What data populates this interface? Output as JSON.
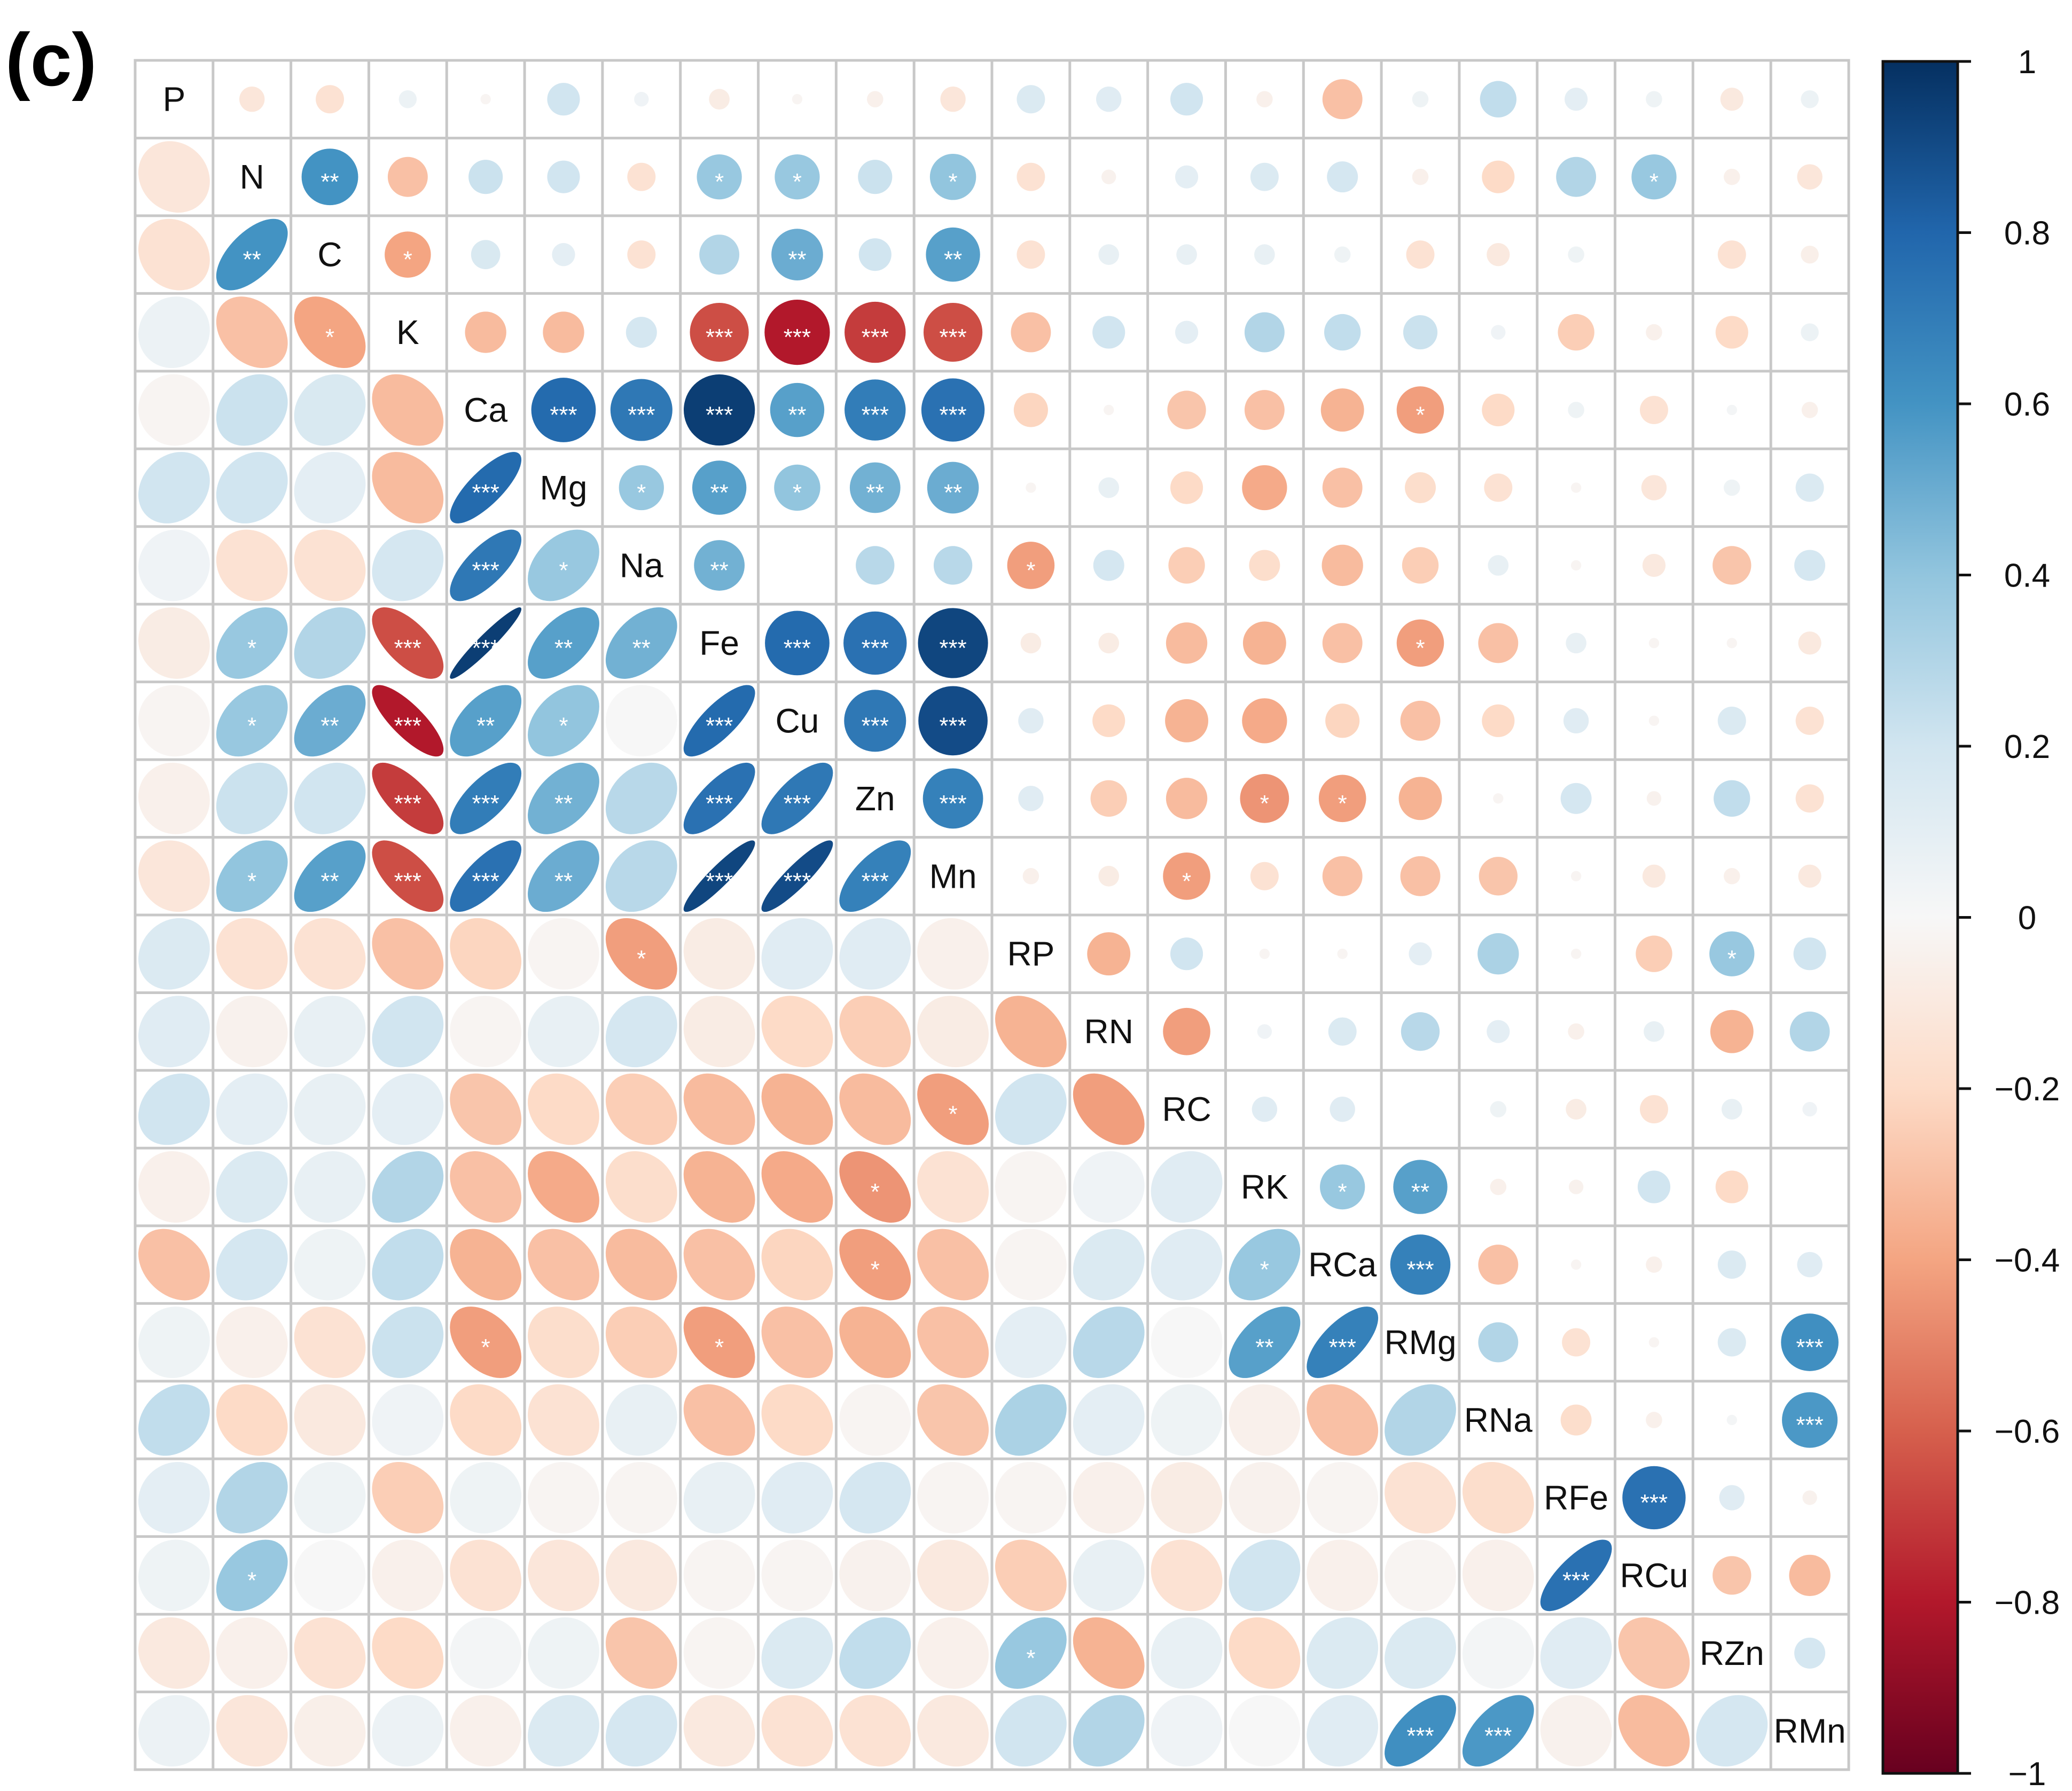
{
  "panel_label": "(c)",
  "colorbar": {
    "ticks": [
      "1",
      "0.8",
      "0.6",
      "0.4",
      "0.2",
      "0",
      "−0.2",
      "−0.4",
      "−0.6",
      "−0.8",
      "−1"
    ],
    "low_color": "#67001f",
    "mid_color": "#ffffff",
    "high_color": "#053061"
  },
  "chart_data": {
    "type": "heatmap",
    "subtype": "correlation matrix (lower: ellipses, upper: circles, * p<0.05, ** p<0.01, *** p<0.001)",
    "variables": [
      "P",
      "N",
      "C",
      "K",
      "Ca",
      "Mg",
      "Na",
      "Fe",
      "Cu",
      "Zn",
      "Mn",
      "RP",
      "RN",
      "RC",
      "RK",
      "RCa",
      "RMg",
      "RNa",
      "RFe",
      "RCu",
      "RZn",
      "RMn"
    ],
    "value_range": [
      -1,
      1
    ],
    "pairs": [
      [
        "N",
        "P",
        -0.12,
        ""
      ],
      [
        "C",
        "P",
        -0.15,
        ""
      ],
      [
        "C",
        "N",
        0.6,
        "**"
      ],
      [
        "K",
        "P",
        0.06,
        ""
      ],
      [
        "K",
        "N",
        -0.3,
        ""
      ],
      [
        "K",
        "C",
        -0.4,
        "*"
      ],
      [
        "Ca",
        "P",
        -0.02,
        ""
      ],
      [
        "Ca",
        "N",
        0.22,
        ""
      ],
      [
        "Ca",
        "C",
        0.16,
        ""
      ],
      [
        "Ca",
        "K",
        -0.32,
        ""
      ],
      [
        "Mg",
        "P",
        0.2,
        ""
      ],
      [
        "Mg",
        "N",
        0.2,
        ""
      ],
      [
        "Mg",
        "C",
        0.1,
        ""
      ],
      [
        "Mg",
        "K",
        -0.32,
        ""
      ],
      [
        "Mg",
        "Ca",
        0.78,
        "***"
      ],
      [
        "Na",
        "P",
        0.04,
        ""
      ],
      [
        "Na",
        "N",
        -0.15,
        ""
      ],
      [
        "Na",
        "C",
        -0.15,
        ""
      ],
      [
        "Na",
        "K",
        0.18,
        ""
      ],
      [
        "Na",
        "Ca",
        0.72,
        "***"
      ],
      [
        "Na",
        "Mg",
        0.38,
        "*"
      ],
      [
        "Fe",
        "P",
        -0.08,
        ""
      ],
      [
        "Fe",
        "N",
        0.38,
        "*"
      ],
      [
        "Fe",
        "C",
        0.3,
        ""
      ],
      [
        "Fe",
        "K",
        -0.65,
        "***"
      ],
      [
        "Fe",
        "Ca",
        0.95,
        "***"
      ],
      [
        "Fe",
        "Mg",
        0.55,
        "**"
      ],
      [
        "Fe",
        "Na",
        0.48,
        "**"
      ],
      [
        "Cu",
        "P",
        -0.02,
        ""
      ],
      [
        "Cu",
        "N",
        0.38,
        "*"
      ],
      [
        "Cu",
        "C",
        0.5,
        "**"
      ],
      [
        "Cu",
        "K",
        -0.8,
        "***"
      ],
      [
        "Cu",
        "Ca",
        0.55,
        "**"
      ],
      [
        "Cu",
        "Mg",
        0.4,
        "*"
      ],
      [
        "Cu",
        "Na",
        0.0,
        ""
      ],
      [
        "Cu",
        "Fe",
        0.78,
        "***"
      ],
      [
        "Zn",
        "P",
        -0.05,
        ""
      ],
      [
        "Zn",
        "N",
        0.22,
        ""
      ],
      [
        "Zn",
        "C",
        0.2,
        ""
      ],
      [
        "Zn",
        "K",
        -0.7,
        "***"
      ],
      [
        "Zn",
        "Ca",
        0.7,
        "***"
      ],
      [
        "Zn",
        "Mg",
        0.48,
        "**"
      ],
      [
        "Zn",
        "Na",
        0.28,
        ""
      ],
      [
        "Zn",
        "Fe",
        0.75,
        "***"
      ],
      [
        "Zn",
        "Cu",
        0.72,
        "***"
      ],
      [
        "Mn",
        "P",
        -0.12,
        ""
      ],
      [
        "Mn",
        "N",
        0.4,
        "*"
      ],
      [
        "Mn",
        "C",
        0.55,
        "**"
      ],
      [
        "Mn",
        "K",
        -0.65,
        "***"
      ],
      [
        "Mn",
        "Ca",
        0.75,
        "***"
      ],
      [
        "Mn",
        "Mg",
        0.5,
        "**"
      ],
      [
        "Mn",
        "Na",
        0.28,
        ""
      ],
      [
        "Mn",
        "Fe",
        0.92,
        "***"
      ],
      [
        "Mn",
        "Cu",
        0.9,
        "***"
      ],
      [
        "Mn",
        "Zn",
        0.68,
        "***"
      ],
      [
        "RP",
        "P",
        0.15,
        ""
      ],
      [
        "RP",
        "N",
        -0.15,
        ""
      ],
      [
        "RP",
        "C",
        -0.15,
        ""
      ],
      [
        "RP",
        "K",
        -0.3,
        ""
      ],
      [
        "RP",
        "Ca",
        -0.22,
        ""
      ],
      [
        "RP",
        "Mg",
        -0.02,
        ""
      ],
      [
        "RP",
        "Na",
        -0.42,
        "*"
      ],
      [
        "RP",
        "Fe",
        -0.08,
        ""
      ],
      [
        "RP",
        "Cu",
        0.12,
        ""
      ],
      [
        "RP",
        "Zn",
        0.12,
        ""
      ],
      [
        "RP",
        "Mn",
        -0.05,
        ""
      ],
      [
        "RN",
        "P",
        0.12,
        ""
      ],
      [
        "RN",
        "N",
        -0.04,
        ""
      ],
      [
        "RN",
        "C",
        0.08,
        ""
      ],
      [
        "RN",
        "K",
        0.2,
        ""
      ],
      [
        "RN",
        "Ca",
        -0.02,
        ""
      ],
      [
        "RN",
        "Mg",
        0.08,
        ""
      ],
      [
        "RN",
        "Na",
        0.18,
        ""
      ],
      [
        "RN",
        "Fe",
        -0.08,
        ""
      ],
      [
        "RN",
        "Cu",
        -0.2,
        ""
      ],
      [
        "RN",
        "Zn",
        -0.25,
        ""
      ],
      [
        "RN",
        "Mn",
        -0.08,
        ""
      ],
      [
        "RN",
        "RP",
        -0.35,
        ""
      ],
      [
        "RC",
        "P",
        0.2,
        ""
      ],
      [
        "RC",
        "N",
        0.1,
        ""
      ],
      [
        "RC",
        "C",
        0.08,
        ""
      ],
      [
        "RC",
        "K",
        0.1,
        ""
      ],
      [
        "RC",
        "Ca",
        -0.28,
        ""
      ],
      [
        "RC",
        "Mg",
        -0.2,
        ""
      ],
      [
        "RC",
        "Na",
        -0.25,
        ""
      ],
      [
        "RC",
        "Fe",
        -0.32,
        ""
      ],
      [
        "RC",
        "Cu",
        -0.35,
        ""
      ],
      [
        "RC",
        "Zn",
        -0.32,
        ""
      ],
      [
        "RC",
        "Mn",
        -0.42,
        "*"
      ],
      [
        "RC",
        "RP",
        0.2,
        ""
      ],
      [
        "RC",
        "RN",
        -0.42,
        ""
      ],
      [
        "RK",
        "P",
        -0.05,
        ""
      ],
      [
        "RK",
        "N",
        0.15,
        ""
      ],
      [
        "RK",
        "C",
        0.08,
        ""
      ],
      [
        "RK",
        "K",
        0.3,
        ""
      ],
      [
        "RK",
        "Ca",
        -0.3,
        ""
      ],
      [
        "RK",
        "Mg",
        -0.38,
        ""
      ],
      [
        "RK",
        "Na",
        -0.18,
        ""
      ],
      [
        "RK",
        "Fe",
        -0.35,
        ""
      ],
      [
        "RK",
        "Cu",
        -0.38,
        ""
      ],
      [
        "RK",
        "Zn",
        -0.45,
        "*"
      ],
      [
        "RK",
        "Mn",
        -0.15,
        ""
      ],
      [
        "RK",
        "RP",
        -0.02,
        ""
      ],
      [
        "RK",
        "RN",
        0.04,
        ""
      ],
      [
        "RK",
        "RC",
        0.12,
        ""
      ],
      [
        "RCa",
        "P",
        -0.3,
        ""
      ],
      [
        "RCa",
        "N",
        0.18,
        ""
      ],
      [
        "RCa",
        "C",
        0.05,
        ""
      ],
      [
        "RCa",
        "K",
        0.25,
        ""
      ],
      [
        "RCa",
        "Ca",
        -0.35,
        ""
      ],
      [
        "RCa",
        "Mg",
        -0.3,
        ""
      ],
      [
        "RCa",
        "Na",
        -0.32,
        ""
      ],
      [
        "RCa",
        "Fe",
        -0.3,
        ""
      ],
      [
        "RCa",
        "Cu",
        -0.22,
        ""
      ],
      [
        "RCa",
        "Zn",
        -0.42,
        "*"
      ],
      [
        "RCa",
        "Mn",
        -0.3,
        ""
      ],
      [
        "RCa",
        "RP",
        -0.02,
        ""
      ],
      [
        "RCa",
        "RN",
        0.15,
        ""
      ],
      [
        "RCa",
        "RC",
        0.12,
        ""
      ],
      [
        "RCa",
        "RK",
        0.38,
        "*"
      ],
      [
        "RMg",
        "P",
        0.05,
        ""
      ],
      [
        "RMg",
        "N",
        -0.05,
        ""
      ],
      [
        "RMg",
        "C",
        -0.15,
        ""
      ],
      [
        "RMg",
        "K",
        0.22,
        ""
      ],
      [
        "RMg",
        "Ca",
        -0.42,
        "*"
      ],
      [
        "RMg",
        "Mg",
        -0.18,
        ""
      ],
      [
        "RMg",
        "Na",
        -0.25,
        ""
      ],
      [
        "RMg",
        "Fe",
        -0.42,
        "*"
      ],
      [
        "RMg",
        "Cu",
        -0.3,
        ""
      ],
      [
        "RMg",
        "Zn",
        -0.35,
        ""
      ],
      [
        "RMg",
        "Mn",
        -0.3,
        ""
      ],
      [
        "RMg",
        "RP",
        0.1,
        ""
      ],
      [
        "RMg",
        "RN",
        0.28,
        ""
      ],
      [
        "RMg",
        "RC",
        0.0,
        ""
      ],
      [
        "RMg",
        "RK",
        0.55,
        "**"
      ],
      [
        "RMg",
        "RCa",
        0.68,
        "***"
      ],
      [
        "RNa",
        "P",
        0.25,
        ""
      ],
      [
        "RNa",
        "N",
        -0.2,
        ""
      ],
      [
        "RNa",
        "C",
        -0.1,
        ""
      ],
      [
        "RNa",
        "K",
        0.04,
        ""
      ],
      [
        "RNa",
        "Ca",
        -0.2,
        ""
      ],
      [
        "RNa",
        "Mg",
        -0.15,
        ""
      ],
      [
        "RNa",
        "Na",
        0.08,
        ""
      ],
      [
        "RNa",
        "Fe",
        -0.3,
        ""
      ],
      [
        "RNa",
        "Cu",
        -0.2,
        ""
      ],
      [
        "RNa",
        "Zn",
        -0.02,
        ""
      ],
      [
        "RNa",
        "Mn",
        -0.28,
        ""
      ],
      [
        "RNa",
        "RP",
        0.32,
        ""
      ],
      [
        "RNa",
        "RN",
        0.1,
        ""
      ],
      [
        "RNa",
        "RC",
        0.05,
        ""
      ],
      [
        "RNa",
        "RK",
        -0.05,
        ""
      ],
      [
        "RNa",
        "RCa",
        -0.3,
        ""
      ],
      [
        "RNa",
        "RMg",
        0.3,
        ""
      ],
      [
        "RFe",
        "P",
        0.1,
        ""
      ],
      [
        "RFe",
        "N",
        0.3,
        ""
      ],
      [
        "RFe",
        "C",
        0.05,
        ""
      ],
      [
        "RFe",
        "K",
        -0.25,
        ""
      ],
      [
        "RFe",
        "Ca",
        0.05,
        ""
      ],
      [
        "RFe",
        "Mg",
        -0.02,
        ""
      ],
      [
        "RFe",
        "Na",
        -0.02,
        ""
      ],
      [
        "RFe",
        "Fe",
        0.08,
        ""
      ],
      [
        "RFe",
        "Cu",
        0.12,
        ""
      ],
      [
        "RFe",
        "Zn",
        0.18,
        ""
      ],
      [
        "RFe",
        "Mn",
        -0.02,
        ""
      ],
      [
        "RFe",
        "RP",
        -0.02,
        ""
      ],
      [
        "RFe",
        "RN",
        -0.05,
        ""
      ],
      [
        "RFe",
        "RC",
        -0.08,
        ""
      ],
      [
        "RFe",
        "RK",
        -0.04,
        ""
      ],
      [
        "RFe",
        "RCa",
        -0.02,
        ""
      ],
      [
        "RFe",
        "RMg",
        -0.15,
        ""
      ],
      [
        "RFe",
        "RNa",
        -0.18,
        ""
      ],
      [
        "RCu",
        "P",
        0.05,
        ""
      ],
      [
        "RCu",
        "N",
        0.38,
        "*"
      ],
      [
        "RCu",
        "C",
        0.0,
        ""
      ],
      [
        "RCu",
        "K",
        -0.05,
        ""
      ],
      [
        "RCu",
        "Ca",
        -0.15,
        ""
      ],
      [
        "RCu",
        "Mg",
        -0.12,
        ""
      ],
      [
        "RCu",
        "Na",
        -0.1,
        ""
      ],
      [
        "RCu",
        "Fe",
        -0.02,
        ""
      ],
      [
        "RCu",
        "Cu",
        -0.02,
        ""
      ],
      [
        "RCu",
        "Zn",
        -0.04,
        ""
      ],
      [
        "RCu",
        "Mn",
        -0.1,
        ""
      ],
      [
        "RCu",
        "RP",
        -0.25,
        ""
      ],
      [
        "RCu",
        "RN",
        0.08,
        ""
      ],
      [
        "RCu",
        "RC",
        -0.15,
        ""
      ],
      [
        "RCu",
        "RK",
        0.2,
        ""
      ],
      [
        "RCu",
        "RCa",
        -0.05,
        ""
      ],
      [
        "RCu",
        "RMg",
        -0.02,
        ""
      ],
      [
        "RCu",
        "RNa",
        -0.05,
        ""
      ],
      [
        "RCu",
        "RFe",
        0.75,
        "***"
      ],
      [
        "RZn",
        "P",
        -0.1,
        ""
      ],
      [
        "RZn",
        "N",
        -0.05,
        ""
      ],
      [
        "RZn",
        "C",
        -0.15,
        ""
      ],
      [
        "RZn",
        "K",
        -0.2,
        ""
      ],
      [
        "RZn",
        "Ca",
        0.02,
        ""
      ],
      [
        "RZn",
        "Mg",
        0.05,
        ""
      ],
      [
        "RZn",
        "Na",
        -0.28,
        ""
      ],
      [
        "RZn",
        "Fe",
        -0.02,
        ""
      ],
      [
        "RZn",
        "Cu",
        0.15,
        ""
      ],
      [
        "RZn",
        "Zn",
        0.25,
        ""
      ],
      [
        "RZn",
        "Mn",
        -0.05,
        ""
      ],
      [
        "RZn",
        "RP",
        0.38,
        "*"
      ],
      [
        "RZn",
        "RN",
        -0.35,
        ""
      ],
      [
        "RZn",
        "RC",
        0.08,
        ""
      ],
      [
        "RZn",
        "RK",
        -0.2,
        ""
      ],
      [
        "RZn",
        "RCa",
        0.15,
        ""
      ],
      [
        "RZn",
        "RMg",
        0.15,
        ""
      ],
      [
        "RZn",
        "RNa",
        0.02,
        ""
      ],
      [
        "RZn",
        "RFe",
        0.12,
        ""
      ],
      [
        "RZn",
        "RCu",
        -0.28,
        ""
      ],
      [
        "RMn",
        "P",
        0.06,
        ""
      ],
      [
        "RMn",
        "N",
        -0.12,
        ""
      ],
      [
        "RMn",
        "C",
        -0.06,
        ""
      ],
      [
        "RMn",
        "K",
        0.06,
        ""
      ],
      [
        "RMn",
        "Ca",
        -0.05,
        ""
      ],
      [
        "RMn",
        "Mg",
        0.15,
        ""
      ],
      [
        "RMn",
        "Na",
        0.18,
        ""
      ],
      [
        "RMn",
        "Fe",
        -0.1,
        ""
      ],
      [
        "RMn",
        "Cu",
        -0.15,
        ""
      ],
      [
        "RMn",
        "Zn",
        -0.15,
        ""
      ],
      [
        "RMn",
        "Mn",
        -0.1,
        ""
      ],
      [
        "RMn",
        "RP",
        0.2,
        ""
      ],
      [
        "RMn",
        "RN",
        0.3,
        ""
      ],
      [
        "RMn",
        "RC",
        0.04,
        ""
      ],
      [
        "RMn",
        "RK",
        0.0,
        ""
      ],
      [
        "RMn",
        "RCa",
        0.12,
        ""
      ],
      [
        "RMn",
        "RMg",
        0.62,
        "***"
      ],
      [
        "RMn",
        "RNa",
        0.58,
        "***"
      ],
      [
        "RMn",
        "RFe",
        -0.04,
        ""
      ],
      [
        "RMn",
        "RCu",
        -0.32,
        ""
      ],
      [
        "RMn",
        "RZn",
        0.18,
        ""
      ]
    ]
  }
}
